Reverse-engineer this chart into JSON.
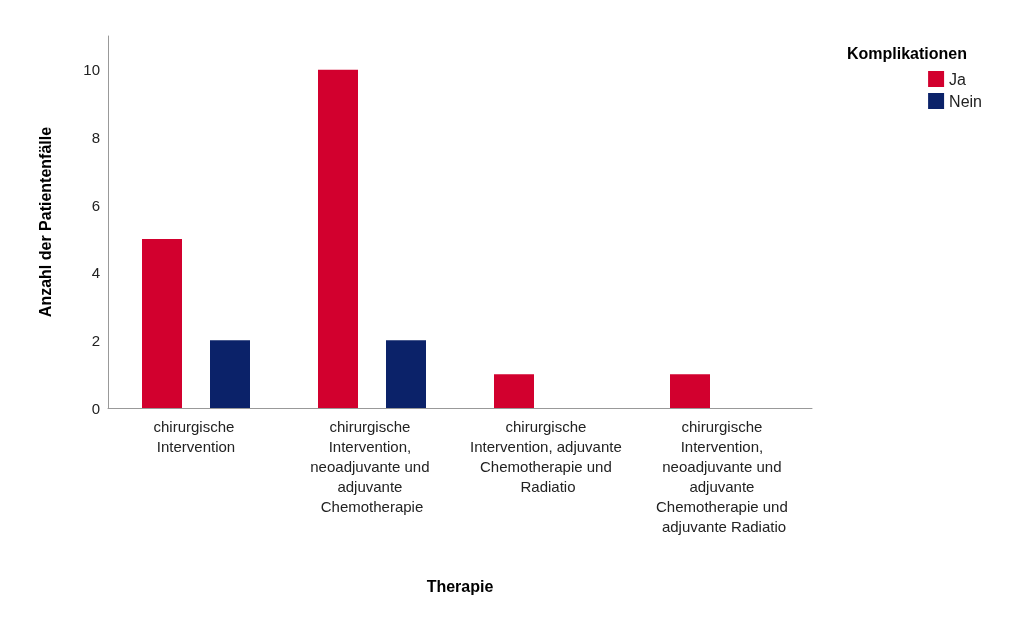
{
  "chart_data": {
    "type": "bar",
    "xlabel": "Therapie",
    "ylabel": "Anzahl der Patientenfälle",
    "legend_title": "Komplikationen",
    "categories": [
      "chirurgische Intervention",
      "chirurgische Intervention, neoadjuvante und adjuvante Chemotherapie",
      "chirurgische Intervention, adjuvante Chemotherapie und Radiatio",
      "chirurgische Intervention, neoadjuvante und adjuvante Chemotherapie und adjuvante Radiatio"
    ],
    "series": [
      {
        "name": "Ja",
        "color": "#d2002e",
        "values": [
          5,
          10,
          1,
          1
        ]
      },
      {
        "name": "Nein",
        "color": "#0b2269",
        "values": [
          2,
          2,
          0,
          0
        ]
      }
    ],
    "ylim": [
      0,
      11
    ],
    "yticks": [
      0,
      2,
      4,
      6,
      8,
      10
    ],
    "grid": false,
    "legend": "top right"
  }
}
